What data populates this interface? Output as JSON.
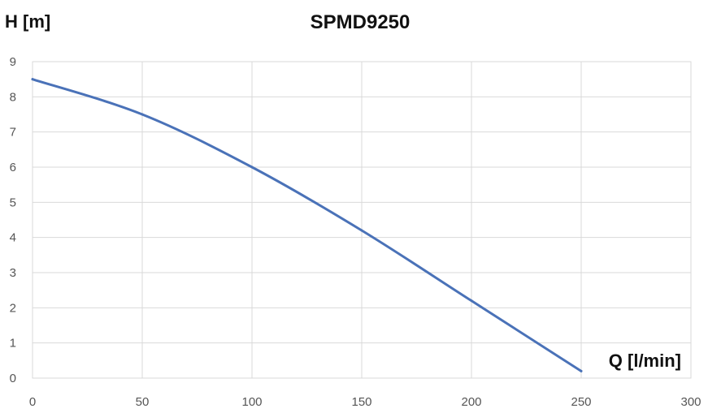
{
  "chart_data": {
    "type": "line",
    "title": "SPMD9250",
    "ylabel": "H [m]",
    "xlabel": "Q [l/min]",
    "xlim": [
      0,
      300
    ],
    "ylim": [
      0,
      9
    ],
    "xticks": [
      0,
      50,
      100,
      150,
      200,
      250,
      300
    ],
    "yticks": [
      0,
      1,
      2,
      3,
      4,
      5,
      6,
      7,
      8,
      9
    ],
    "grid": true,
    "series": [
      {
        "color": "#4a72b8",
        "x": [
          0,
          50,
          100,
          150,
          200,
          250
        ],
        "y": [
          8.5,
          7.5,
          6.0,
          4.2,
          2.2,
          0.2
        ]
      }
    ]
  }
}
